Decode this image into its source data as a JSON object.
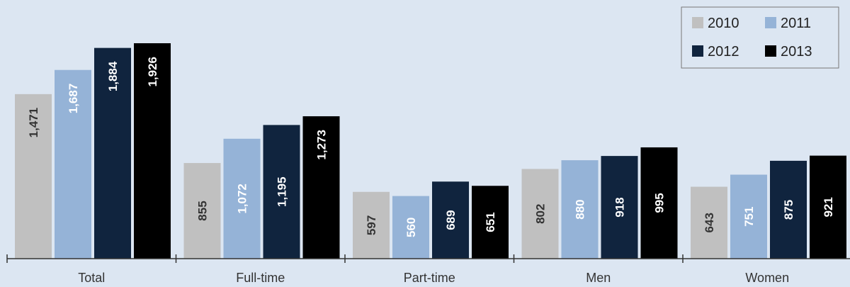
{
  "chart_data": {
    "type": "bar",
    "title": "",
    "xlabel": "",
    "ylabel": "",
    "categories": [
      "Total",
      "Full-time",
      "Part-time",
      "Men",
      "Women"
    ],
    "series": [
      {
        "name": "2010",
        "color": "#c0c0c0",
        "label_color": "#333333",
        "values": [
          1471,
          855,
          597,
          802,
          643
        ],
        "labels": [
          "1,471",
          "855",
          "597",
          "802",
          "643"
        ]
      },
      {
        "name": "2011",
        "color": "#95b3d7",
        "label_color": "#ffffff",
        "values": [
          1687,
          1072,
          560,
          880,
          751
        ],
        "labels": [
          "1,687",
          "1,072",
          "560",
          "880",
          "751"
        ]
      },
      {
        "name": "2012",
        "color": "#10243e",
        "label_color": "#ffffff",
        "values": [
          1884,
          1195,
          689,
          918,
          875
        ],
        "labels": [
          "1,884",
          "1,195",
          "689",
          "918",
          "875"
        ]
      },
      {
        "name": "2013",
        "color": "#000000",
        "label_color": "#ffffff",
        "values": [
          1926,
          1273,
          651,
          995,
          921
        ],
        "labels": [
          "1,926",
          "1,273",
          "651",
          "995",
          "921"
        ]
      }
    ],
    "ylim": [
      0,
      1926
    ],
    "grid": false,
    "legend_position": "top-right"
  }
}
